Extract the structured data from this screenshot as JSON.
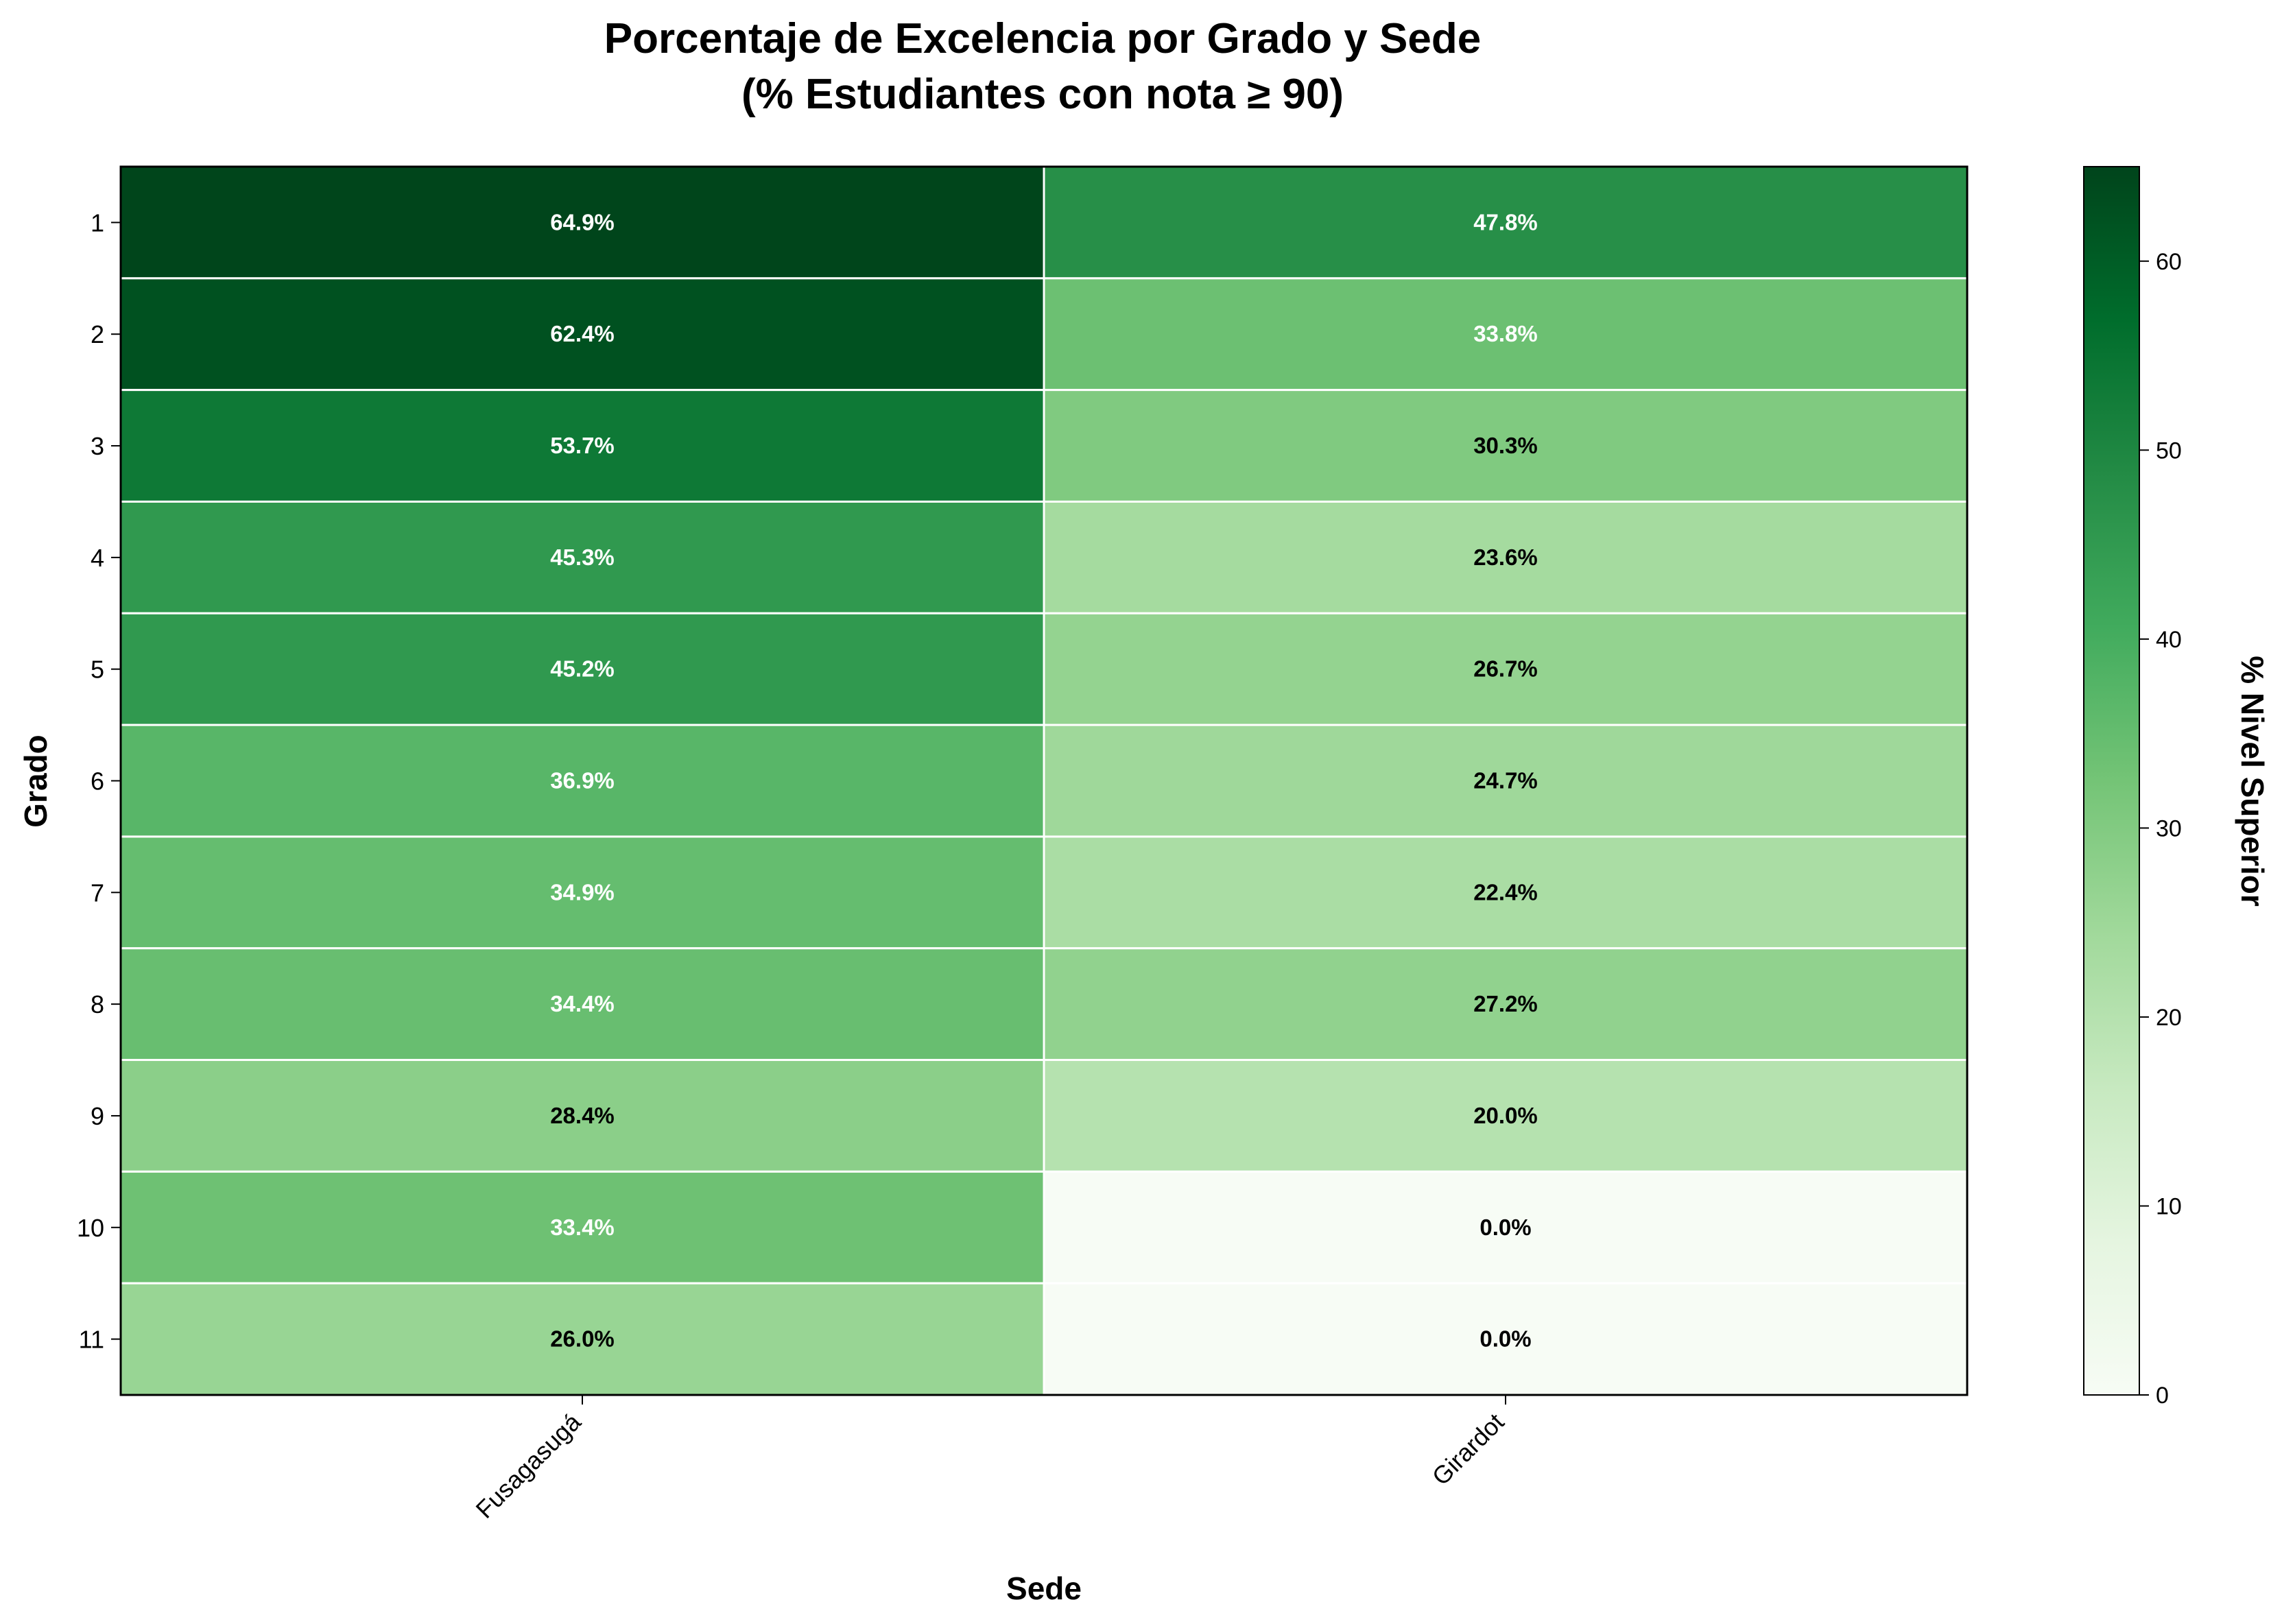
{
  "chart_data": {
    "type": "heatmap",
    "title_lines": [
      "Porcentaje de Excelencia por Grado y Sede",
      "(% Estudiantes con nota ≥ 90)"
    ],
    "xlabel": "Sede",
    "ylabel": "Grado",
    "x_categories": [
      "Fusagasugá",
      "Girardot"
    ],
    "y_categories": [
      "1",
      "2",
      "3",
      "4",
      "5",
      "6",
      "7",
      "8",
      "9",
      "10",
      "11"
    ],
    "values": [
      [
        64.9,
        47.8
      ],
      [
        62.4,
        33.8
      ],
      [
        53.7,
        30.3
      ],
      [
        45.3,
        23.6
      ],
      [
        45.2,
        26.7
      ],
      [
        36.9,
        24.7
      ],
      [
        34.9,
        22.4
      ],
      [
        34.4,
        27.2
      ],
      [
        28.4,
        20.0
      ],
      [
        33.4,
        0.0
      ],
      [
        26.0,
        0.0
      ]
    ],
    "cell_labels": [
      [
        "64.9%",
        "47.8%"
      ],
      [
        "62.4%",
        "33.8%"
      ],
      [
        "53.7%",
        "30.3%"
      ],
      [
        "45.3%",
        "23.6%"
      ],
      [
        "45.2%",
        "26.7%"
      ],
      [
        "36.9%",
        "24.7%"
      ],
      [
        "34.9%",
        "22.4%"
      ],
      [
        "34.4%",
        "27.2%"
      ],
      [
        "28.4%",
        "20.0%"
      ],
      [
        "33.4%",
        "0.0%"
      ],
      [
        "26.0%",
        "0.0%"
      ]
    ],
    "colormap": "Greens",
    "color_range": [
      0,
      65
    ],
    "colorbar": {
      "label": "% Nivel Superior",
      "ticks": [
        0,
        10,
        20,
        30,
        40,
        50,
        60
      ]
    },
    "colors": {
      "cell_border": "#ffffff",
      "label_dark": "#000000",
      "label_light": "#ffffff"
    }
  }
}
